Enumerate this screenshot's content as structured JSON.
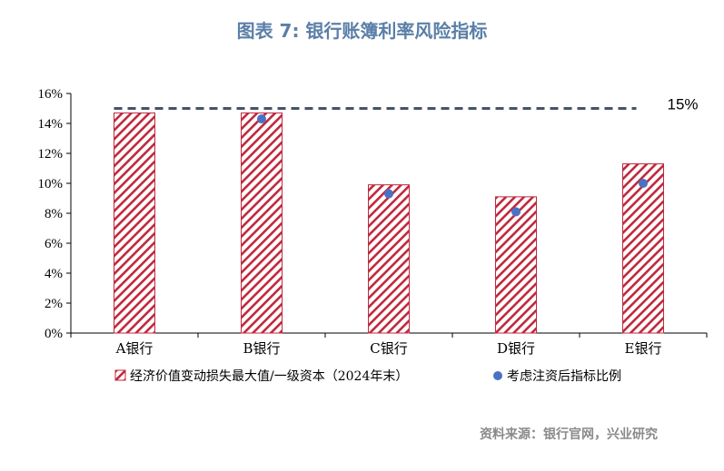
{
  "title": "图表 7:   银行账簿利率风险指标",
  "source": "资料来源：银行官网，兴业研究",
  "chart_data": {
    "type": "bar",
    "categories": [
      "A银行",
      "B银行",
      "C银行",
      "D银行",
      "E银行"
    ],
    "series": [
      {
        "name": "经济价值变动损失最大值/一级资本（2024年末）",
        "kind": "bar",
        "values": [
          14.7,
          14.7,
          9.9,
          9.1,
          11.3
        ],
        "color": "#c0283c"
      },
      {
        "name": "考虑注资后指标比例",
        "kind": "point",
        "values": [
          null,
          14.3,
          9.3,
          8.1,
          10.0
        ],
        "color": "#4a72c4"
      }
    ],
    "reference_line": {
      "value": 15,
      "label": "15%",
      "style": "dashed",
      "color": "#44546a"
    },
    "ylim": [
      0,
      16
    ],
    "yticks": [
      "0%",
      "2%",
      "4%",
      "6%",
      "8%",
      "10%",
      "12%",
      "14%",
      "16%"
    ],
    "grid": false,
    "legend_position": "bottom"
  }
}
